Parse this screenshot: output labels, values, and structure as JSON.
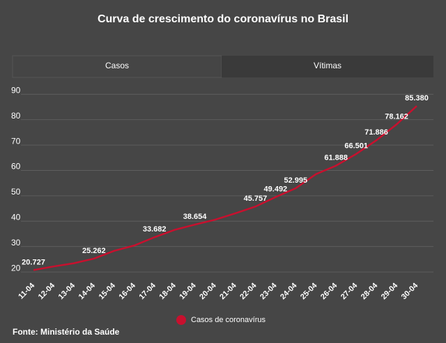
{
  "chart_data": {
    "type": "line",
    "title": "Curva de crescimento do coronavírus no Brasil",
    "categories": [
      "11-04",
      "12-04",
      "13-04",
      "14-04",
      "15-04",
      "16-04",
      "17-04",
      "18-04",
      "19-04",
      "20-04",
      "21-04",
      "22-04",
      "23-04",
      "24-04",
      "25-04",
      "26-04",
      "27-04",
      "28-04",
      "29-04",
      "30-04"
    ],
    "series": [
      {
        "name": "Casos de coronavírus",
        "color": "#c8102e",
        "values": [
          20.727,
          22.169,
          23.43,
          25.262,
          28.32,
          30.425,
          33.682,
          36.599,
          38.654,
          40.581,
          43.079,
          45.757,
          49.492,
          52.995,
          58.509,
          61.888,
          66.501,
          71.886,
          78.162,
          85.38
        ],
        "value_labels": [
          "20.727",
          null,
          null,
          "25.262",
          null,
          null,
          "33.682",
          null,
          "38.654",
          null,
          null,
          "45.757",
          "49.492",
          "52.995",
          null,
          "61.888",
          "66.501",
          "71.886",
          "78.162",
          "85.380"
        ]
      }
    ],
    "ylim": [
      17,
      92
    ],
    "yticks": [
      20,
      30,
      40,
      50,
      60,
      70,
      80,
      90
    ],
    "grid": true
  },
  "tabs": [
    "Casos",
    "Vítimas"
  ],
  "source": "Fonte: Ministério da Saúde"
}
